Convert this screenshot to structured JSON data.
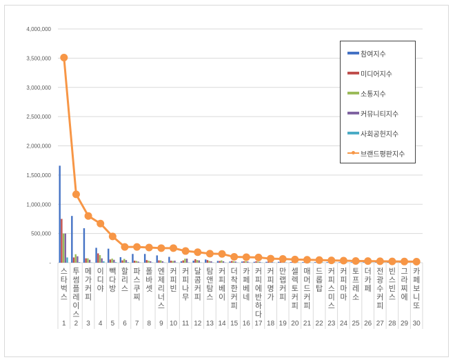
{
  "chart_data": {
    "type": "bar+line",
    "title": "",
    "xlabel": "",
    "ylabel": "",
    "ylim": [
      0,
      4000000
    ],
    "yticks": [
      "-",
      "500,000",
      "1,000,000",
      "1,500,000",
      "2,000,000",
      "2,500,000",
      "3,000,000",
      "3,500,000",
      "4,000,000"
    ],
    "grid": true,
    "legend_position": "right-top",
    "categories": [
      "스타벅스",
      "투썸플레이스",
      "메가커피",
      "이디야",
      "빽다방",
      "할리스",
      "파스쿠찌",
      "폴바셋",
      "엔제리너스",
      "커피빈",
      "커피나무",
      "달콤커피",
      "탐앤탐스",
      "커피베이",
      "더착한커피",
      "카페베네",
      "커피에반하다",
      "커피명가",
      "만랩커피",
      "셀렉토커피",
      "매머드커피",
      "드롭탑",
      "커피스미스",
      "커피마마",
      "토프레소",
      "더카페",
      "전광수커피",
      "빈스빈스",
      "그라찌에",
      "카페보니또"
    ],
    "ranks": [
      "1",
      "2",
      "3",
      "4",
      "5",
      "6",
      "7",
      "8",
      "9",
      "10",
      "11",
      "12",
      "13",
      "14",
      "15",
      "16",
      "17",
      "18",
      "19",
      "20",
      "21",
      "22",
      "23",
      "24",
      "25",
      "26",
      "27",
      "28",
      "29",
      "30"
    ],
    "series": [
      {
        "name": "참여지수",
        "type": "bar",
        "color": "#4472c4",
        "values": [
          1660000,
          800000,
          590000,
          255000,
          240000,
          95000,
          150000,
          150000,
          125000,
          100000,
          25000,
          35000,
          55000,
          30000,
          20000,
          20000,
          15000,
          15000,
          15000,
          10000,
          10000,
          10000,
          10000,
          8000,
          8000,
          8000,
          6000,
          6000,
          6000,
          5000
        ]
      },
      {
        "name": "미디어지수",
        "type": "bar",
        "color": "#c0504d",
        "values": [
          750000,
          90000,
          75000,
          160000,
          55000,
          40000,
          35000,
          45000,
          40000,
          35000,
          40000,
          60000,
          45000,
          30000,
          30000,
          25000,
          25000,
          20000,
          20000,
          20000,
          15000,
          15000,
          12000,
          12000,
          10000,
          10000,
          8000,
          8000,
          6000,
          5000
        ]
      },
      {
        "name": "소통지수",
        "type": "bar",
        "color": "#9bbb59",
        "values": [
          500000,
          145000,
          75000,
          130000,
          70000,
          65000,
          30000,
          35000,
          40000,
          30000,
          70000,
          45000,
          30000,
          40000,
          25000,
          25000,
          20000,
          15000,
          15000,
          12000,
          12000,
          10000,
          10000,
          8000,
          8000,
          6000,
          6000,
          5000,
          5000,
          5000
        ]
      },
      {
        "name": "커뮤니티지수",
        "type": "bar",
        "color": "#8064a2",
        "values": [
          500000,
          110000,
          50000,
          75000,
          50000,
          45000,
          20000,
          25000,
          25000,
          35000,
          70000,
          40000,
          25000,
          25000,
          20000,
          20000,
          15000,
          12000,
          12000,
          10000,
          10000,
          8000,
          8000,
          6000,
          6000,
          5000,
          5000,
          5000,
          4000,
          4000
        ]
      },
      {
        "name": "사회공헌지수",
        "type": "bar",
        "color": "#4bacc6",
        "values": [
          90000,
          10000,
          5000,
          25000,
          10000,
          10000,
          5000,
          5000,
          5000,
          5000,
          5000,
          5000,
          5000,
          5000,
          5000,
          5000,
          5000,
          5000,
          5000,
          5000,
          5000,
          5000,
          5000,
          5000,
          5000,
          5000,
          5000,
          5000,
          5000,
          5000
        ]
      },
      {
        "name": "브랜드평판지수",
        "type": "line",
        "color": "#f79646",
        "values": [
          3510000,
          1170000,
          800000,
          670000,
          450000,
          270000,
          270000,
          260000,
          250000,
          250000,
          200000,
          180000,
          155000,
          150000,
          100000,
          95000,
          90000,
          70000,
          65000,
          55000,
          50000,
          45000,
          40000,
          35000,
          30000,
          28000,
          25000,
          22000,
          20000,
          18000
        ]
      }
    ]
  },
  "legend": {
    "items": [
      {
        "label": "참여지수",
        "color": "#4472c4",
        "kind": "bar"
      },
      {
        "label": "미디어지수",
        "color": "#c0504d",
        "kind": "bar"
      },
      {
        "label": "소통지수",
        "color": "#9bbb59",
        "kind": "bar"
      },
      {
        "label": "커뮤니티지수",
        "color": "#8064a2",
        "kind": "bar"
      },
      {
        "label": "사회공헌지수",
        "color": "#4bacc6",
        "kind": "bar"
      },
      {
        "label": "브랜드평판지수",
        "color": "#f79646",
        "kind": "line"
      }
    ]
  }
}
